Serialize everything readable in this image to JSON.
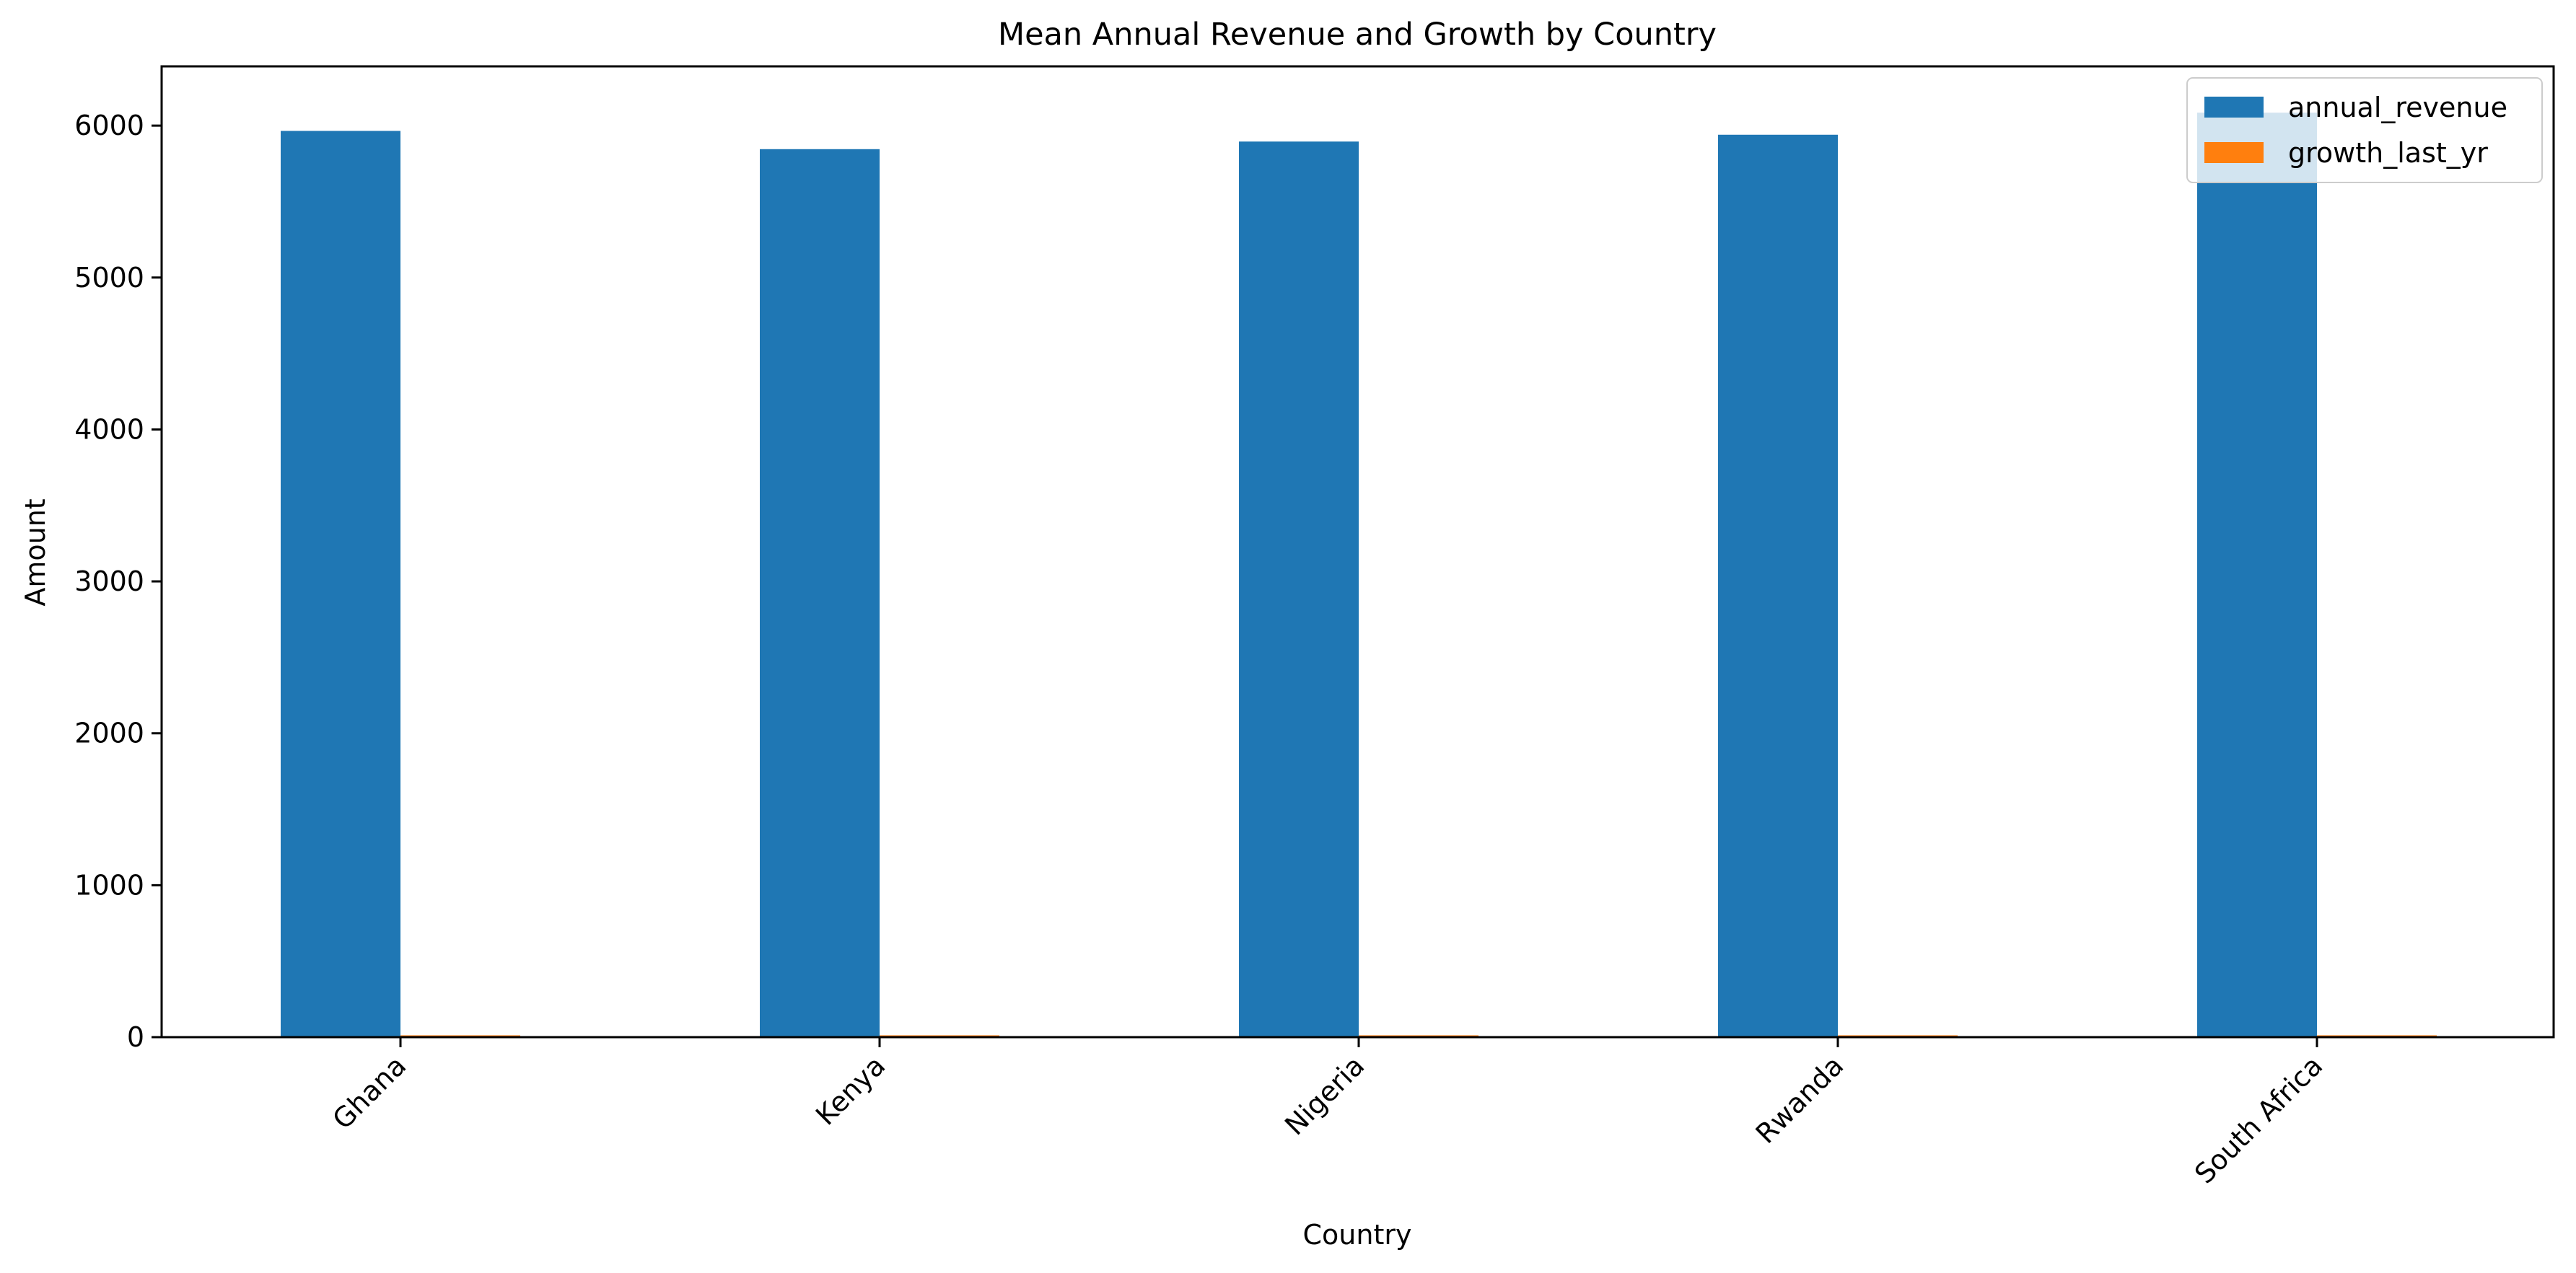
{
  "chart_data": {
    "type": "bar",
    "title": "Mean Annual Revenue and Growth by Country",
    "xlabel": "Country",
    "ylabel": "Amount",
    "categories": [
      "Ghana",
      "Kenya",
      "Nigeria",
      "Rwanda",
      "South Africa"
    ],
    "series": [
      {
        "name": "annual_revenue",
        "color": "#1f77b4",
        "values": [
          5965,
          5845,
          5895,
          5940,
          6085
        ]
      },
      {
        "name": "growth_last_yr",
        "color": "#ff7f0e",
        "values": [
          12,
          12,
          12,
          12,
          12
        ]
      }
    ],
    "ylim": [
      0,
      6390
    ],
    "yticks": [
      0,
      1000,
      2000,
      3000,
      4000,
      5000,
      6000
    ],
    "grid": false,
    "legend_position": "top-right"
  }
}
